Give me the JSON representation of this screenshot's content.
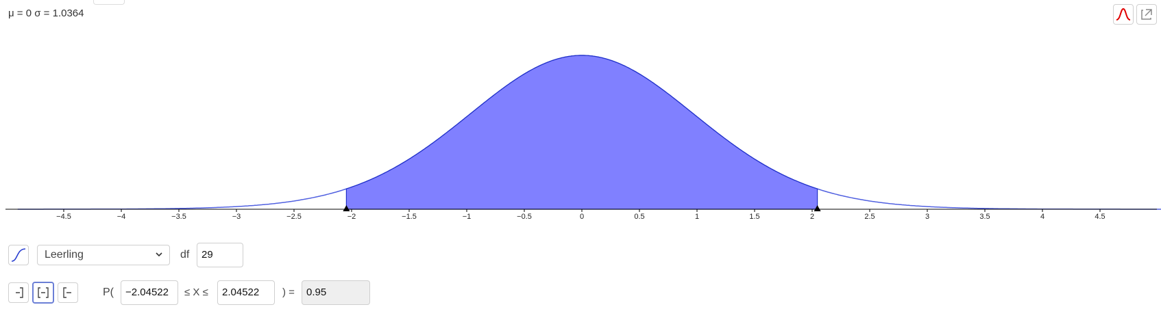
{
  "header": {
    "stats_text": "μ = 0 σ = 1.0364"
  },
  "toolbar": {
    "normal_overlay_icon": "bell-curve-icon",
    "export_icon": "export-icon"
  },
  "controls": {
    "cumulative_icon": "cumulative-curve-icon",
    "distribution": "Leerling",
    "df_label": "df",
    "df_value": "29",
    "interval_modes": [
      "left-sided-icon",
      "two-sided-icon",
      "right-sided-icon"
    ],
    "active_mode": "two-sided-icon",
    "p_open": "P(",
    "lower_value": "−2.04522",
    "le_x_le": "≤ X ≤",
    "upper_value": "2.04522",
    "p_close": ") =",
    "result": "0.95"
  },
  "chart_data": {
    "type": "area",
    "distribution": "Student t",
    "df": 29,
    "shaded_interval": [
      -2.04522,
      2.04522
    ],
    "probability": 0.95,
    "xlim": [
      -4.9,
      5.1
    ],
    "x_ticks": [
      "-4.5",
      "-4",
      "-3.5",
      "-3",
      "-2.5",
      "-2",
      "-1.5",
      "-1",
      "-0.5",
      "0",
      "0.5",
      "1",
      "1.5",
      "2",
      "2.5",
      "3",
      "3.5",
      "4",
      "4.5"
    ],
    "colors": {
      "fill": "#8080ff",
      "line": "#1a2fd0",
      "axis": "#000000"
    }
  }
}
